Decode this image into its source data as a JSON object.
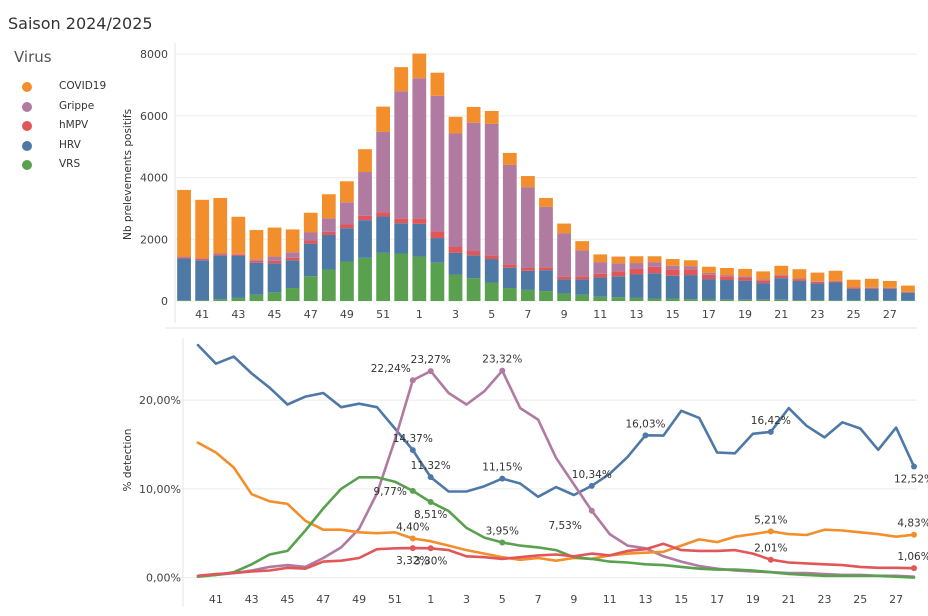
{
  "title": "Saison 2024/2025",
  "legend": {
    "title": "Virus",
    "items": [
      {
        "label": "COVID19",
        "color": "#f28e2b"
      },
      {
        "label": "Grippe",
        "color": "#b07aa1"
      },
      {
        "label": "hMPV",
        "color": "#e15759"
      },
      {
        "label": "HRV",
        "color": "#4e79a7"
      },
      {
        "label": "VRS",
        "color": "#59a14f"
      }
    ]
  },
  "chart_data": [
    {
      "type": "bar",
      "stacked": true,
      "ylabel": "Nb prelevements positifs",
      "ylim": [
        0,
        8200
      ],
      "yticks": [
        "0",
        "2000",
        "4000",
        "6000",
        "8000"
      ],
      "categories": [
        40,
        41,
        42,
        43,
        44,
        45,
        46,
        47,
        48,
        49,
        50,
        51,
        52,
        1,
        2,
        3,
        4,
        5,
        6,
        7,
        8,
        9,
        10,
        11,
        12,
        13,
        14,
        15,
        16,
        17,
        18,
        19,
        20,
        21,
        22,
        23,
        24,
        25,
        26,
        27,
        28
      ],
      "xtick_labels": [
        "41",
        "43",
        "45",
        "47",
        "49",
        "51",
        "1",
        "3",
        "5",
        "7",
        "9",
        "11",
        "13",
        "15",
        "17",
        "19",
        "21",
        "23",
        "25",
        "27"
      ],
      "series": [
        {
          "name": "VRS",
          "values": [
            20,
            20,
            60,
            100,
            200,
            280,
            420,
            800,
            1020,
            1280,
            1400,
            1560,
            1540,
            1440,
            1240,
            860,
            740,
            600,
            420,
            360,
            320,
            240,
            200,
            140,
            120,
            100,
            80,
            80,
            60,
            50,
            40,
            40,
            40,
            40,
            30,
            30,
            20,
            20,
            20,
            20,
            10
          ]
        },
        {
          "name": "HRV",
          "values": [
            1360,
            1300,
            1420,
            1360,
            1040,
            940,
            900,
            1060,
            1120,
            1080,
            1220,
            1180,
            980,
            1060,
            800,
            700,
            740,
            760,
            660,
            620,
            680,
            460,
            500,
            620,
            680,
            760,
            820,
            740,
            780,
            660,
            640,
            620,
            540,
            700,
            620,
            540,
            580,
            380,
            380,
            380,
            260
          ]
        },
        {
          "name": "hMPV",
          "values": [
            40,
            40,
            40,
            40,
            60,
            80,
            80,
            100,
            100,
            120,
            140,
            140,
            150,
            170,
            210,
            190,
            140,
            120,
            100,
            90,
            90,
            90,
            100,
            120,
            160,
            190,
            210,
            210,
            190,
            140,
            120,
            100,
            90,
            70,
            60,
            50,
            40,
            40,
            30,
            20,
            20
          ]
        },
        {
          "name": "Grippe",
          "values": [
            20,
            20,
            20,
            30,
            50,
            140,
            180,
            260,
            440,
            720,
            1420,
            2600,
            4130,
            4550,
            4400,
            3680,
            4160,
            4260,
            3230,
            2620,
            1960,
            1400,
            840,
            380,
            260,
            180,
            150,
            110,
            100,
            60,
            40,
            40,
            30,
            30,
            20,
            20,
            20,
            10,
            10,
            10,
            10
          ]
        },
        {
          "name": "COVID19",
          "values": [
            2160,
            1900,
            1800,
            1200,
            950,
            940,
            740,
            640,
            780,
            680,
            740,
            820,
            780,
            800,
            750,
            540,
            510,
            420,
            390,
            360,
            290,
            320,
            300,
            250,
            220,
            220,
            190,
            220,
            190,
            200,
            230,
            240,
            260,
            300,
            300,
            280,
            320,
            240,
            280,
            220,
            200
          ]
        }
      ]
    },
    {
      "type": "line",
      "ylabel": "% detection",
      "ylim": [
        -0.5,
        27
      ],
      "yticks": [
        "0,00%",
        "10,00%",
        "20,00%"
      ],
      "series": [
        {
          "name": "HRV",
          "values": [
            26.2,
            24.1,
            24.9,
            23.0,
            21.4,
            19.5,
            20.4,
            20.8,
            19.2,
            19.6,
            19.2,
            16.8,
            14.37,
            11.32,
            9.7,
            9.7,
            10.3,
            11.15,
            10.6,
            9.1,
            10.2,
            9.3,
            10.34,
            11.7,
            13.6,
            16.03,
            16.0,
            18.8,
            18.0,
            14.1,
            14.0,
            16.2,
            16.42,
            19.1,
            17.1,
            15.8,
            17.5,
            16.8,
            14.4,
            16.9,
            12.52
          ]
        },
        {
          "name": "Grippe",
          "values": [
            0.2,
            0.3,
            0.5,
            0.8,
            1.2,
            1.4,
            1.2,
            2.2,
            3.4,
            5.5,
            9.5,
            15.5,
            22.24,
            23.27,
            20.8,
            19.5,
            21.0,
            23.32,
            19.1,
            17.8,
            13.5,
            10.5,
            7.53,
            4.9,
            3.6,
            3.3,
            2.4,
            1.8,
            1.3,
            1.0,
            0.8,
            0.7,
            0.6,
            0.5,
            0.5,
            0.4,
            0.3,
            0.3,
            0.2,
            0.2,
            0.1
          ]
        },
        {
          "name": "COVID19",
          "values": [
            15.2,
            14.1,
            12.4,
            9.4,
            8.6,
            8.3,
            6.4,
            5.4,
            5.4,
            5.1,
            5.0,
            5.1,
            4.4,
            4.1,
            3.6,
            3.1,
            2.7,
            2.3,
            2.0,
            2.2,
            1.9,
            2.2,
            2.1,
            2.5,
            2.7,
            2.8,
            2.9,
            3.6,
            4.3,
            4.0,
            4.6,
            4.9,
            5.21,
            4.9,
            4.8,
            5.4,
            5.3,
            5.1,
            4.9,
            4.6,
            4.83
          ]
        },
        {
          "name": "VRS",
          "values": [
            0.1,
            0.3,
            0.6,
            1.5,
            2.6,
            3.0,
            5.3,
            7.8,
            10.0,
            11.3,
            11.3,
            10.8,
            9.77,
            8.51,
            7.5,
            5.6,
            4.5,
            3.95,
            3.6,
            3.4,
            3.1,
            2.3,
            2.1,
            1.8,
            1.7,
            1.5,
            1.4,
            1.2,
            1.0,
            0.9,
            0.9,
            0.8,
            0.6,
            0.4,
            0.3,
            0.2,
            0.2,
            0.2,
            0.2,
            0.1,
            0.0
          ]
        },
        {
          "name": "hMPV",
          "values": [
            0.2,
            0.4,
            0.5,
            0.7,
            0.8,
            1.1,
            1.0,
            1.8,
            1.9,
            2.2,
            3.2,
            3.3,
            3.32,
            3.3,
            3.1,
            2.4,
            2.3,
            2.1,
            2.3,
            2.5,
            2.6,
            2.4,
            2.7,
            2.5,
            3.0,
            3.2,
            3.8,
            3.1,
            3.0,
            3.0,
            3.1,
            2.7,
            2.01,
            1.7,
            1.6,
            1.5,
            1.4,
            1.2,
            1.1,
            1.1,
            1.06
          ]
        }
      ],
      "annotations": [
        {
          "series": "HRV",
          "index": 12,
          "text": "14,37%",
          "pos": "above"
        },
        {
          "series": "HRV",
          "index": 13,
          "text": "11,32%",
          "pos": "above"
        },
        {
          "series": "HRV",
          "index": 17,
          "text": "11,15%",
          "pos": "above"
        },
        {
          "series": "HRV",
          "index": 22,
          "text": "10,34%",
          "pos": "above"
        },
        {
          "series": "HRV",
          "index": 25,
          "text": "16,03%",
          "pos": "above"
        },
        {
          "series": "HRV",
          "index": 32,
          "text": "16,42%",
          "pos": "above"
        },
        {
          "series": "HRV",
          "index": 40,
          "text": "12,52%",
          "pos": "below"
        },
        {
          "series": "Grippe",
          "index": 12,
          "text": "22,24%",
          "pos": "above-left"
        },
        {
          "series": "Grippe",
          "index": 13,
          "text": "23,27%",
          "pos": "above"
        },
        {
          "series": "Grippe",
          "index": 17,
          "text": "23,32%",
          "pos": "above"
        },
        {
          "series": "Grippe",
          "index": 22,
          "text": "7,53%",
          "pos": "below-left"
        },
        {
          "series": "VRS",
          "index": 12,
          "text": "9,77%",
          "pos": "left"
        },
        {
          "series": "VRS",
          "index": 13,
          "text": "8,51%",
          "pos": "below"
        },
        {
          "series": "VRS",
          "index": 17,
          "text": "3,95%",
          "pos": "above"
        },
        {
          "series": "COVID19",
          "index": 12,
          "text": "4,40%",
          "pos": "above"
        },
        {
          "series": "COVID19",
          "index": 32,
          "text": "5,21%",
          "pos": "above"
        },
        {
          "series": "COVID19",
          "index": 40,
          "text": "4,83%",
          "pos": "above"
        },
        {
          "series": "hMPV",
          "index": 12,
          "text": "3,32%",
          "pos": "below"
        },
        {
          "series": "hMPV",
          "index": 13,
          "text": "3,30%",
          "pos": "below"
        },
        {
          "series": "hMPV",
          "index": 32,
          "text": "2,01%",
          "pos": "above"
        },
        {
          "series": "hMPV",
          "index": 40,
          "text": "1,06%",
          "pos": "above"
        }
      ]
    }
  ]
}
